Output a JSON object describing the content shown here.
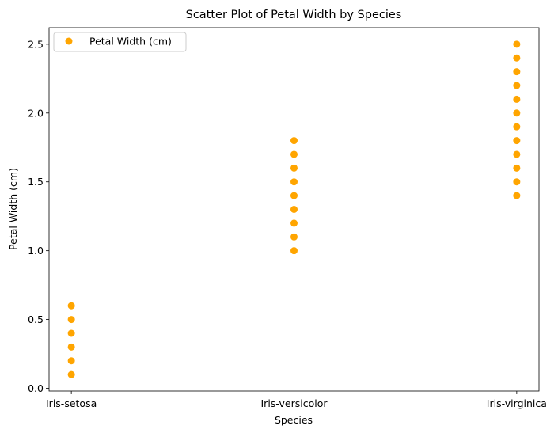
{
  "chart_data": {
    "type": "scatter",
    "title": "Scatter Plot of Petal Width by Species",
    "xlabel": "Species",
    "ylabel": "Petal Width (cm)",
    "categories": [
      "Iris-setosa",
      "Iris-versicolor",
      "Iris-virginica"
    ],
    "ylim": [
      -0.02,
      2.62
    ],
    "yticks": [
      "0.0",
      "0.5",
      "1.0",
      "1.5",
      "2.0",
      "2.5"
    ],
    "grid": false,
    "legend_position": "top-left",
    "series": [
      {
        "name": "Petal Width (cm)",
        "color": "#ffa500",
        "points": [
          {
            "x": "Iris-setosa",
            "y": 0.1
          },
          {
            "x": "Iris-setosa",
            "y": 0.2
          },
          {
            "x": "Iris-setosa",
            "y": 0.3
          },
          {
            "x": "Iris-setosa",
            "y": 0.4
          },
          {
            "x": "Iris-setosa",
            "y": 0.5
          },
          {
            "x": "Iris-setosa",
            "y": 0.6
          },
          {
            "x": "Iris-versicolor",
            "y": 1.0
          },
          {
            "x": "Iris-versicolor",
            "y": 1.1
          },
          {
            "x": "Iris-versicolor",
            "y": 1.2
          },
          {
            "x": "Iris-versicolor",
            "y": 1.3
          },
          {
            "x": "Iris-versicolor",
            "y": 1.4
          },
          {
            "x": "Iris-versicolor",
            "y": 1.5
          },
          {
            "x": "Iris-versicolor",
            "y": 1.6
          },
          {
            "x": "Iris-versicolor",
            "y": 1.7
          },
          {
            "x": "Iris-versicolor",
            "y": 1.8
          },
          {
            "x": "Iris-virginica",
            "y": 1.4
          },
          {
            "x": "Iris-virginica",
            "y": 1.5
          },
          {
            "x": "Iris-virginica",
            "y": 1.6
          },
          {
            "x": "Iris-virginica",
            "y": 1.7
          },
          {
            "x": "Iris-virginica",
            "y": 1.8
          },
          {
            "x": "Iris-virginica",
            "y": 1.9
          },
          {
            "x": "Iris-virginica",
            "y": 2.0
          },
          {
            "x": "Iris-virginica",
            "y": 2.1
          },
          {
            "x": "Iris-virginica",
            "y": 2.2
          },
          {
            "x": "Iris-virginica",
            "y": 2.3
          },
          {
            "x": "Iris-virginica",
            "y": 2.4
          },
          {
            "x": "Iris-virginica",
            "y": 2.5
          }
        ]
      }
    ]
  }
}
